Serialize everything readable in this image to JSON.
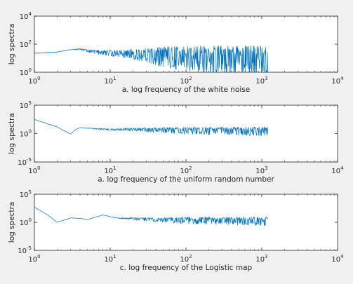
{
  "figure": {
    "background": "#f0f0f0",
    "axes_background": "#ffffff",
    "line_color": "#0072bd",
    "axis_color": "#262626"
  },
  "chart_data": [
    {
      "type": "line",
      "title": "",
      "xlabel": "a. log frequency of the white noise",
      "ylabel": "log spectra",
      "xscale": "log",
      "yscale": "log",
      "xlim": [
        1,
        10000
      ],
      "ylim": [
        1,
        10000
      ],
      "xticks": [
        1,
        10,
        100,
        1000,
        10000
      ],
      "xtick_labels": [
        {
          "base": "10",
          "exp": "0"
        },
        {
          "base": "10",
          "exp": "1"
        },
        {
          "base": "10",
          "exp": "2"
        },
        {
          "base": "10",
          "exp": "3"
        },
        {
          "base": "10",
          "exp": "4"
        }
      ],
      "yticks": [
        1,
        100,
        10000
      ],
      "ytick_labels": [
        {
          "base": "10",
          "exp": "0"
        },
        {
          "base": "10",
          "exp": "2"
        },
        {
          "base": "10",
          "exp": "4"
        }
      ],
      "grid": false,
      "legend": "none",
      "series": [
        {
          "x_range": [
            1,
            1200
          ],
          "envelope": [
            [
              1,
              22,
              22
            ],
            [
              2,
              28,
              28
            ],
            [
              3,
              40,
              40
            ],
            [
              4,
              47,
              47
            ],
            [
              5,
              38,
              38
            ],
            [
              7,
              30,
              30
            ],
            [
              10,
              28,
              28
            ],
            [
              14,
              27,
              27
            ],
            [
              20,
              26,
              26
            ],
            [
              30,
              25,
              25
            ],
            [
              50,
              24,
              24
            ],
            [
              100,
              20,
              20
            ],
            [
              300,
              16,
              16
            ],
            [
              1200,
              16,
              16
            ]
          ],
          "spread": [
            [
              1,
              0
            ],
            [
              3,
              0
            ],
            [
              5,
              0.15
            ],
            [
              10,
              0.3
            ],
            [
              20,
              0.5
            ],
            [
              40,
              0.9
            ],
            [
              100,
              1.3
            ],
            [
              300,
              1.55
            ],
            [
              1200,
              1.6
            ]
          ]
        }
      ]
    },
    {
      "type": "line",
      "title": "",
      "xlabel": "a. log frequency of the uniform random number",
      "ylabel": "log spectra",
      "xscale": "log",
      "yscale": "log",
      "xlim": [
        1,
        10000
      ],
      "ylim": [
        1e-05,
        100000
      ],
      "xticks": [
        1,
        10,
        100,
        1000,
        10000
      ],
      "xtick_labels": [
        {
          "base": "10",
          "exp": "0"
        },
        {
          "base": "10",
          "exp": "1"
        },
        {
          "base": "10",
          "exp": "2"
        },
        {
          "base": "10",
          "exp": "3"
        },
        {
          "base": "10",
          "exp": "4"
        }
      ],
      "yticks": [
        1e-05,
        1,
        100000
      ],
      "ytick_labels": [
        {
          "base": "10",
          "exp": "-5"
        },
        {
          "base": "10",
          "exp": "0"
        },
        {
          "base": "10",
          "exp": "5"
        }
      ],
      "grid": false,
      "legend": "none",
      "series": [
        {
          "x_range": [
            1,
            1200
          ],
          "envelope": [
            [
              1,
              300,
              300
            ],
            [
              2,
              15,
              15
            ],
            [
              3,
              0.8,
              0.8
            ],
            [
              3.5,
              5,
              5
            ],
            [
              4,
              12,
              12
            ],
            [
              6,
              8,
              8
            ],
            [
              10,
              6,
              6
            ],
            [
              20,
              7,
              7
            ],
            [
              50,
              6,
              6
            ],
            [
              1200,
              5,
              5
            ]
          ],
          "spread": [
            [
              1,
              0
            ],
            [
              4,
              0
            ],
            [
              8,
              0.2
            ],
            [
              20,
              0.4
            ],
            [
              50,
              0.7
            ],
            [
              100,
              0.9
            ],
            [
              1200,
              1.1
            ]
          ]
        }
      ]
    },
    {
      "type": "line",
      "title": "",
      "xlabel": "c. log frequency of the Logistic map",
      "ylabel": "log spectra",
      "xscale": "log",
      "yscale": "log",
      "xlim": [
        1,
        10000
      ],
      "ylim": [
        1e-05,
        100000
      ],
      "xticks": [
        1,
        10,
        100,
        1000,
        10000
      ],
      "xtick_labels": [
        {
          "base": "10",
          "exp": "0"
        },
        {
          "base": "10",
          "exp": "1"
        },
        {
          "base": "10",
          "exp": "2"
        },
        {
          "base": "10",
          "exp": "3"
        },
        {
          "base": "10",
          "exp": "4"
        }
      ],
      "yticks": [
        1e-05,
        1,
        100000
      ],
      "ytick_labels": [
        {
          "base": "10",
          "exp": "-5"
        },
        {
          "base": "10",
          "exp": "0"
        },
        {
          "base": "10",
          "exp": "5"
        }
      ],
      "grid": false,
      "legend": "none",
      "series": [
        {
          "x_range": [
            1,
            1200
          ],
          "envelope": [
            [
              1,
              500,
              500
            ],
            [
              1.5,
              20,
              20
            ],
            [
              2,
              1,
              1
            ],
            [
              3,
              6,
              6
            ],
            [
              4,
              5,
              5
            ],
            [
              5,
              3,
              3
            ],
            [
              8,
              20,
              20
            ],
            [
              12,
              6,
              6
            ],
            [
              20,
              5,
              5
            ],
            [
              50,
              4,
              4
            ],
            [
              1200,
              3,
              3
            ]
          ],
          "spread": [
            [
              1,
              0
            ],
            [
              10,
              0
            ],
            [
              20,
              0.3
            ],
            [
              50,
              0.6
            ],
            [
              100,
              0.9
            ],
            [
              1200,
              1.1
            ]
          ]
        }
      ]
    }
  ]
}
